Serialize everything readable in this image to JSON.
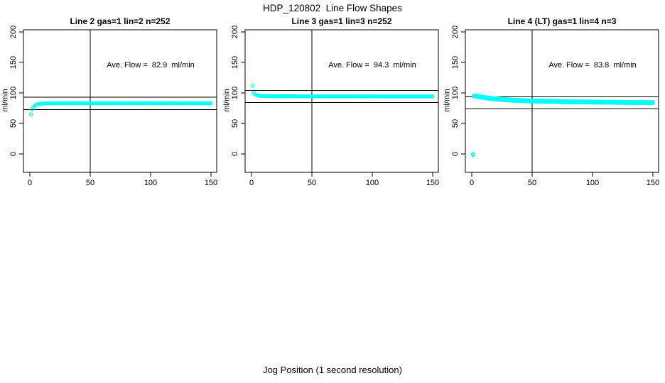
{
  "figure": {
    "title": "HDP_120802  Line Flow Shapes",
    "xlabel": "Jog Position (1 second resolution)",
    "background": "#FFFFFF"
  },
  "axes": {
    "ylabel": "ml/min",
    "xticks": [
      0,
      50,
      100,
      150
    ],
    "yticks": [
      0,
      50,
      100,
      150,
      200
    ],
    "x_start": 1,
    "x_end": 150,
    "x_step": 1,
    "xlim": [
      -5,
      155
    ],
    "ylim": [
      -30,
      204
    ],
    "grid": false
  },
  "style": {
    "marker_color": "#00FFFF",
    "line_color": "#000000",
    "marker": "open-circle"
  },
  "chart_data": [
    {
      "type": "scatter",
      "title": "Line 2 gas=1 lin=2 n=252",
      "annotation": "Ave. Flow =  82.9  ml/min",
      "ave_flow_ml_min": 82.9,
      "gas": 1,
      "lin": 2,
      "n": 252,
      "hlines": [
        92.9,
        72.9
      ],
      "vline": 50,
      "runs_offsets": [
        0
      ],
      "keypoints": [
        [
          1,
          65
        ],
        [
          2,
          73
        ],
        [
          3,
          76.5
        ],
        [
          4,
          78.5
        ],
        [
          5,
          80
        ],
        [
          6,
          81
        ],
        [
          8,
          82.2
        ],
        [
          12,
          82.8
        ],
        [
          20,
          83
        ],
        [
          150,
          83
        ]
      ]
    },
    {
      "type": "scatter",
      "title": "Line 3 gas=1 lin=3 n=252",
      "annotation": "Ave. Flow =  94.3  ml/min",
      "ave_flow_ml_min": 94.3,
      "gas": 1,
      "lin": 3,
      "n": 252,
      "hlines": [
        104.3,
        84.3
      ],
      "vline": 50,
      "runs_offsets": [
        0
      ],
      "keypoints": [
        [
          1,
          112
        ],
        [
          2,
          100
        ],
        [
          3,
          97.5
        ],
        [
          4,
          96.5
        ],
        [
          5,
          95.8
        ],
        [
          7,
          95.2
        ],
        [
          10,
          94.8
        ],
        [
          20,
          94.5
        ],
        [
          150,
          94.2
        ]
      ]
    },
    {
      "type": "scatter",
      "title": "Line 4 (LT) gas=1 lin=4 n=3",
      "annotation": "Ave. Flow =  83.8  ml/min",
      "ave_flow_ml_min": 83.8,
      "gas": 1,
      "lin": 4,
      "n": 3,
      "hlines": [
        93.8,
        73.8
      ],
      "vline": 50,
      "runs_offsets": [
        -0.9,
        0,
        0.9
      ],
      "keypoints": [
        [
          1,
          -1
        ],
        [
          2,
          95
        ],
        [
          3,
          94.8
        ],
        [
          5,
          94.2
        ],
        [
          8,
          93.2
        ],
        [
          12,
          92
        ],
        [
          18,
          90.5
        ],
        [
          25,
          89.3
        ],
        [
          35,
          88
        ],
        [
          50,
          86.8
        ],
        [
          70,
          85.8
        ],
        [
          100,
          85
        ],
        [
          130,
          84.4
        ],
        [
          150,
          84.2
        ]
      ]
    }
  ]
}
